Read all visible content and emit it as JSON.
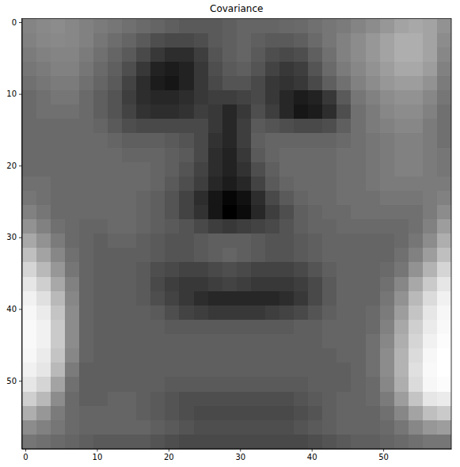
{
  "chart_data": {
    "type": "heatmap",
    "title": "Covariance",
    "color": "gray",
    "xlim": [
      -0.5,
      59.5
    ],
    "ylim": [
      59.5,
      -0.5
    ],
    "xticks": [
      0,
      10,
      20,
      30,
      40,
      50
    ],
    "yticks": [
      0,
      10,
      20,
      30,
      40,
      50
    ],
    "x_edges": [
      -0.5,
      1.5,
      3.5,
      5.5,
      7.5,
      9.5,
      11.5,
      13.5,
      15.5,
      17.5,
      19.5,
      21.5,
      23.5,
      25.5,
      27.5,
      29.5,
      31.5,
      33.5,
      35.5,
      37.5,
      39.5,
      41.5,
      43.5,
      45.5,
      47.5,
      49.5,
      51.5,
      53.5,
      55.5,
      57.5,
      59.5
    ],
    "y_edges": [
      -0.5,
      1.5,
      3.5,
      5.5,
      7.5,
      9.5,
      11.5,
      13.5,
      15.5,
      17.5,
      19.5,
      21.5,
      23.5,
      25.5,
      27.5,
      29.5,
      31.5,
      33.5,
      35.5,
      37.5,
      39.5,
      41.5,
      43.5,
      45.5,
      47.5,
      49.5,
      51.5,
      53.5,
      55.5,
      57.5,
      59.5
    ],
    "cells": [
      [
        55,
        57,
        58,
        56,
        54,
        52,
        50,
        48,
        46,
        44,
        42,
        40,
        40,
        40,
        42,
        44,
        44,
        44,
        45,
        46,
        48,
        50,
        52,
        55,
        58,
        62,
        66,
        68,
        66,
        60
      ],
      [
        54,
        56,
        57,
        56,
        54,
        50,
        47,
        44,
        40,
        36,
        34,
        34,
        36,
        40,
        42,
        44,
        42,
        40,
        40,
        42,
        46,
        50,
        54,
        58,
        62,
        66,
        70,
        70,
        66,
        58
      ],
      [
        52,
        54,
        55,
        55,
        52,
        48,
        44,
        40,
        34,
        28,
        24,
        24,
        30,
        38,
        42,
        44,
        40,
        36,
        34,
        36,
        42,
        48,
        54,
        58,
        62,
        66,
        70,
        70,
        66,
        56
      ],
      [
        50,
        52,
        54,
        54,
        50,
        46,
        42,
        36,
        28,
        20,
        18,
        20,
        28,
        36,
        40,
        42,
        38,
        32,
        28,
        30,
        38,
        46,
        52,
        56,
        60,
        64,
        68,
        68,
        64,
        54
      ],
      [
        48,
        50,
        52,
        52,
        48,
        44,
        40,
        32,
        24,
        18,
        16,
        20,
        28,
        34,
        38,
        38,
        34,
        28,
        26,
        28,
        34,
        42,
        48,
        54,
        58,
        62,
        64,
        64,
        60,
        52
      ],
      [
        46,
        48,
        50,
        50,
        46,
        42,
        38,
        30,
        24,
        22,
        22,
        24,
        28,
        30,
        30,
        32,
        34,
        28,
        22,
        18,
        20,
        28,
        40,
        50,
        54,
        58,
        60,
        60,
        56,
        50
      ],
      [
        46,
        48,
        48,
        48,
        46,
        42,
        38,
        32,
        26,
        24,
        24,
        26,
        30,
        28,
        22,
        28,
        36,
        30,
        22,
        16,
        18,
        24,
        36,
        48,
        52,
        56,
        58,
        58,
        54,
        48
      ],
      [
        46,
        46,
        46,
        46,
        46,
        44,
        40,
        36,
        34,
        34,
        34,
        34,
        34,
        28,
        22,
        30,
        40,
        38,
        36,
        34,
        34,
        36,
        42,
        48,
        52,
        54,
        56,
        56,
        52,
        48
      ],
      [
        46,
        46,
        46,
        46,
        46,
        46,
        44,
        42,
        42,
        42,
        40,
        38,
        34,
        26,
        22,
        30,
        42,
        44,
        44,
        44,
        44,
        44,
        46,
        48,
        50,
        52,
        54,
        54,
        52,
        48
      ],
      [
        46,
        46,
        46,
        46,
        46,
        46,
        46,
        44,
        44,
        44,
        42,
        40,
        34,
        24,
        20,
        28,
        40,
        44,
        46,
        46,
        46,
        46,
        48,
        48,
        50,
        52,
        54,
        54,
        52,
        50
      ],
      [
        46,
        46,
        46,
        46,
        46,
        46,
        46,
        46,
        46,
        44,
        42,
        38,
        32,
        24,
        20,
        26,
        36,
        42,
        46,
        46,
        46,
        46,
        48,
        48,
        50,
        52,
        54,
        54,
        52,
        50
      ],
      [
        48,
        48,
        46,
        46,
        46,
        46,
        46,
        46,
        46,
        44,
        40,
        36,
        30,
        22,
        18,
        22,
        32,
        40,
        44,
        46,
        46,
        46,
        48,
        48,
        50,
        52,
        52,
        52,
        52,
        52
      ],
      [
        50,
        48,
        46,
        46,
        46,
        46,
        46,
        46,
        44,
        42,
        38,
        32,
        24,
        16,
        10,
        14,
        24,
        34,
        40,
        44,
        46,
        46,
        48,
        48,
        48,
        50,
        50,
        50,
        52,
        54
      ],
      [
        54,
        50,
        46,
        46,
        46,
        46,
        46,
        46,
        44,
        42,
        38,
        32,
        26,
        16,
        8,
        12,
        22,
        30,
        36,
        42,
        44,
        46,
        46,
        48,
        48,
        48,
        48,
        48,
        52,
        58
      ],
      [
        60,
        54,
        48,
        46,
        44,
        44,
        46,
        46,
        44,
        42,
        40,
        38,
        34,
        30,
        28,
        30,
        32,
        34,
        38,
        42,
        44,
        44,
        46,
        46,
        46,
        46,
        46,
        48,
        54,
        64
      ],
      [
        68,
        60,
        52,
        46,
        44,
        42,
        44,
        44,
        42,
        40,
        38,
        38,
        40,
        42,
        42,
        42,
        40,
        38,
        38,
        40,
        42,
        44,
        44,
        44,
        44,
        44,
        46,
        50,
        58,
        70
      ],
      [
        76,
        66,
        56,
        48,
        44,
        42,
        42,
        42,
        42,
        40,
        38,
        38,
        40,
        42,
        44,
        42,
        40,
        38,
        38,
        40,
        42,
        44,
        44,
        44,
        44,
        44,
        48,
        54,
        64,
        76
      ],
      [
        84,
        74,
        62,
        50,
        44,
        42,
        42,
        42,
        40,
        36,
        34,
        32,
        32,
        34,
        36,
        34,
        32,
        32,
        32,
        34,
        38,
        42,
        44,
        44,
        44,
        46,
        50,
        60,
        72,
        84
      ],
      [
        90,
        82,
        68,
        54,
        44,
        42,
        42,
        42,
        40,
        34,
        30,
        28,
        28,
        30,
        32,
        30,
        28,
        28,
        28,
        30,
        34,
        40,
        44,
        44,
        44,
        48,
        56,
        68,
        80,
        90
      ],
      [
        94,
        88,
        74,
        56,
        44,
        42,
        42,
        42,
        40,
        36,
        32,
        28,
        24,
        22,
        22,
        22,
        22,
        22,
        24,
        28,
        34,
        40,
        44,
        44,
        44,
        50,
        60,
        74,
        86,
        94
      ],
      [
        96,
        92,
        78,
        58,
        44,
        42,
        42,
        42,
        42,
        40,
        36,
        32,
        30,
        28,
        28,
        28,
        28,
        30,
        32,
        34,
        38,
        42,
        44,
        44,
        46,
        52,
        64,
        78,
        90,
        96
      ],
      [
        97,
        94,
        80,
        58,
        44,
        42,
        42,
        42,
        42,
        42,
        40,
        40,
        40,
        40,
        40,
        40,
        40,
        40,
        40,
        42,
        42,
        44,
        44,
        44,
        46,
        54,
        68,
        82,
        92,
        97
      ],
      [
        97,
        94,
        80,
        58,
        44,
        42,
        42,
        42,
        42,
        42,
        42,
        42,
        42,
        42,
        42,
        42,
        42,
        42,
        42,
        42,
        42,
        44,
        44,
        44,
        48,
        56,
        70,
        84,
        94,
        98
      ],
      [
        96,
        92,
        78,
        56,
        44,
        42,
        42,
        42,
        42,
        42,
        42,
        42,
        42,
        42,
        42,
        42,
        42,
        42,
        42,
        42,
        42,
        42,
        44,
        44,
        48,
        58,
        72,
        86,
        96,
        99
      ],
      [
        94,
        90,
        74,
        52,
        42,
        42,
        42,
        42,
        42,
        42,
        42,
        42,
        42,
        42,
        42,
        42,
        42,
        42,
        42,
        42,
        42,
        42,
        42,
        44,
        48,
        58,
        72,
        88,
        97,
        99
      ],
      [
        90,
        84,
        66,
        48,
        42,
        42,
        42,
        42,
        42,
        42,
        40,
        40,
        40,
        40,
        40,
        40,
        40,
        40,
        40,
        40,
        42,
        42,
        42,
        44,
        46,
        56,
        70,
        86,
        96,
        98
      ],
      [
        82,
        74,
        58,
        46,
        42,
        42,
        44,
        44,
        42,
        40,
        38,
        36,
        36,
        36,
        36,
        36,
        36,
        36,
        36,
        38,
        40,
        42,
        44,
        44,
        46,
        52,
        64,
        78,
        90,
        92
      ],
      [
        70,
        62,
        52,
        46,
        44,
        44,
        44,
        44,
        42,
        40,
        38,
        36,
        34,
        34,
        34,
        34,
        34,
        34,
        34,
        36,
        38,
        42,
        44,
        44,
        44,
        48,
        56,
        66,
        76,
        80
      ],
      [
        58,
        54,
        50,
        46,
        44,
        44,
        44,
        44,
        44,
        42,
        40,
        38,
        36,
        36,
        36,
        36,
        36,
        36,
        36,
        38,
        40,
        42,
        44,
        44,
        44,
        46,
        50,
        56,
        62,
        64
      ],
      [
        50,
        48,
        46,
        44,
        42,
        40,
        40,
        40,
        40,
        38,
        36,
        34,
        34,
        34,
        34,
        34,
        34,
        34,
        34,
        34,
        36,
        38,
        40,
        42,
        42,
        44,
        46,
        48,
        50,
        50
      ]
    ]
  }
}
